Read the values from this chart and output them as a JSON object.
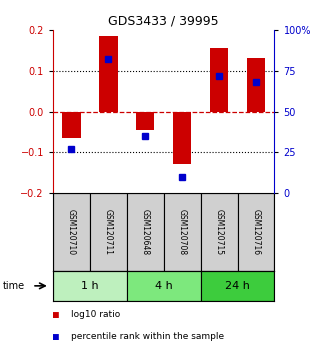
{
  "title": "GDS3433 / 39995",
  "samples": [
    "GSM120710",
    "GSM120711",
    "GSM120648",
    "GSM120708",
    "GSM120715",
    "GSM120716"
  ],
  "log10_ratio": [
    -0.065,
    0.185,
    -0.045,
    -0.13,
    0.155,
    0.132
  ],
  "percentile_rank": [
    0.27,
    0.82,
    0.35,
    0.1,
    0.72,
    0.68
  ],
  "ylim_left": [
    -0.2,
    0.2
  ],
  "ylim_right": [
    0,
    1.0
  ],
  "yticks_left": [
    -0.2,
    -0.1,
    0,
    0.1,
    0.2
  ],
  "yticks_right": [
    0,
    0.25,
    0.5,
    0.75,
    1.0
  ],
  "ytick_labels_right": [
    "0",
    "25",
    "50",
    "75",
    "100%"
  ],
  "time_groups": [
    {
      "label": "1 h",
      "samples": [
        0,
        1
      ],
      "color": "#bef0be"
    },
    {
      "label": "4 h",
      "samples": [
        2,
        3
      ],
      "color": "#7de87d"
    },
    {
      "label": "24 h",
      "samples": [
        4,
        5
      ],
      "color": "#3dcc3d"
    }
  ],
  "bar_color": "#cc0000",
  "dot_color": "#0000cc",
  "zero_line_color": "#cc0000",
  "grid_color": "#000000",
  "bg_color": "#ffffff",
  "sample_box_color": "#d0d0d0",
  "title_color": "#000000",
  "left_label_color": "#cc0000",
  "right_label_color": "#0000cc"
}
